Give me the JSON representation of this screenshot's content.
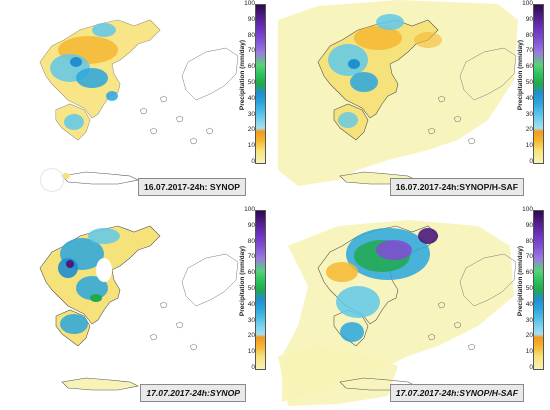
{
  "colorbar": {
    "label": "Precipitation (mm/day)",
    "ticks": [
      "100",
      "90",
      "80",
      "70",
      "60",
      "50",
      "40",
      "30",
      "20",
      "10",
      "0"
    ],
    "range": [
      0,
      100
    ],
    "colors": [
      "#f7f3b6",
      "#f5b732",
      "#60c8ea",
      "#1f8fcf",
      "#21a94e",
      "#7f4fd4",
      "#2b0a4e"
    ]
  },
  "panels": [
    {
      "caption": "16.07.2017-24h: SYNOP"
    },
    {
      "caption": "16.07.2017-24h:SYNOP/H-SAF"
    },
    {
      "caption": "17.07.2017-24h:SYNOP"
    },
    {
      "caption": "17.07.2017-24h:SYNOP/H-SAF"
    }
  ]
}
